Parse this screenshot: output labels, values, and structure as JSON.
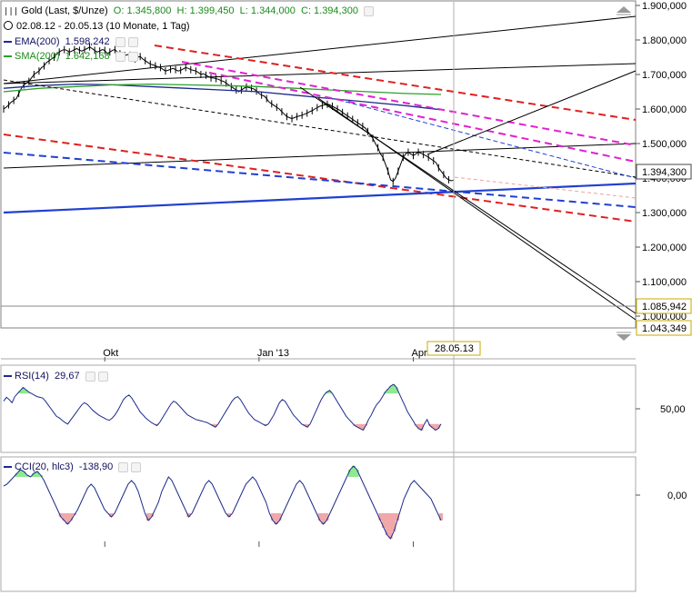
{
  "header": {
    "symbol": "Gold (Last, $/Unze)",
    "o_label": "O:",
    "o_value": "1.345,800",
    "h_label": "H:",
    "h_value": "1.399,450",
    "l_label": "L:",
    "l_value": "1.344,000",
    "c_label": "C:",
    "c_value": "1.394,300",
    "range": "02.08.12 - 20.05.13 (10 Monate, 1 Tag)",
    "ema_label": "EMA(200)",
    "ema_value": "1.598,242",
    "sma_label": "SMA(200)",
    "sma_value": "1.642,168"
  },
  "colors": {
    "ema": "#1c2a8c",
    "sma": "#2aa02a",
    "red_trend": "#e02020",
    "magenta_trend": "#e020d0",
    "blue_trend": "#2040d0",
    "price": "#000000",
    "rsi_line": "#1c2a8c",
    "overbought": "#90e890",
    "oversold": "#f0a8a8"
  },
  "chart_data": [
    {
      "type": "line",
      "title": "Gold (Last, $/Unze)",
      "ylim": [
        1000,
        1900
      ],
      "y_ticks": [
        "1.900,000",
        "1.800,000",
        "1.700,000",
        "1.600,000",
        "1.500,000",
        "1.400,000",
        "1.300,000",
        "1.200,000",
        "1.100,000",
        "1.000,000"
      ],
      "y_tick_values": [
        1900,
        1800,
        1700,
        1600,
        1500,
        1400,
        1300,
        1200,
        1100,
        1000
      ],
      "x_ticks": [
        "Okt",
        "Jan '13",
        "Apr"
      ],
      "x_tick_index": [
        40,
        101,
        162
      ],
      "cursor_label": "28.05.13",
      "cursor_index": 200,
      "value_labels": [
        {
          "text": "1.394,300",
          "value": 1394.3
        },
        {
          "text": "1.085,942",
          "value": 1085.942
        },
        {
          "text": "1.043,349",
          "value": 1043.349
        }
      ],
      "series": [
        {
          "name": "Gold",
          "values": [
            1600,
            1605,
            1612,
            1620,
            1625,
            1630,
            1645,
            1660,
            1670,
            1675,
            1680,
            1690,
            1700,
            1705,
            1710,
            1720,
            1725,
            1735,
            1740,
            1745,
            1750,
            1760,
            1765,
            1770,
            1772,
            1770,
            1765,
            1768,
            1772,
            1775,
            1770,
            1768,
            1772,
            1775,
            1780,
            1775,
            1770,
            1765,
            1768,
            1772,
            1770,
            1760,
            1765,
            1770,
            1772,
            1765,
            1760,
            1755,
            1755,
            1758,
            1756,
            1750,
            1745,
            1750,
            1752,
            1745,
            1740,
            1735,
            1730,
            1728,
            1725,
            1722,
            1720,
            1715,
            1710,
            1712,
            1715,
            1718,
            1714,
            1710,
            1712,
            1716,
            1720,
            1718,
            1714,
            1712,
            1710,
            1706,
            1700,
            1702,
            1698,
            1694,
            1690,
            1690,
            1688,
            1686,
            1682,
            1680,
            1675,
            1670,
            1665,
            1660,
            1655,
            1650,
            1655,
            1660,
            1664,
            1662,
            1660,
            1658,
            1652,
            1645,
            1640,
            1638,
            1630,
            1620,
            1615,
            1610,
            1605,
            1600,
            1592,
            1585,
            1578,
            1575,
            1572,
            1575,
            1578,
            1580,
            1582,
            1585,
            1588,
            1592,
            1595,
            1600,
            1604,
            1608,
            1610,
            1612,
            1614,
            1612,
            1608,
            1604,
            1600,
            1596,
            1590,
            1585,
            1580,
            1575,
            1570,
            1565,
            1560,
            1555,
            1550,
            1545,
            1535,
            1525,
            1515,
            1500,
            1488,
            1470,
            1460,
            1440,
            1420,
            1395,
            1390,
            1400,
            1420,
            1440,
            1460,
            1470,
            1475,
            1470,
            1465,
            1470,
            1475,
            1472,
            1468,
            1465,
            1460,
            1455,
            1450,
            1445,
            1430,
            1420,
            1410,
            1400,
            1395,
            1392,
            1394
          ]
        },
        {
          "name": "EMA(200)",
          "values": [
            1660,
            1668,
            1672,
            1670,
            1665,
            1660,
            1655,
            1650,
            1640,
            1630,
            1620,
            1610,
            1598
          ]
        },
        {
          "name": "SMA(200)",
          "values": [
            1650,
            1660,
            1665,
            1670,
            1672,
            1670,
            1668,
            1665,
            1660,
            1655,
            1650,
            1645,
            1642
          ]
        }
      ]
    },
    {
      "type": "line",
      "title": "RSI(14)",
      "series_value": "29,67",
      "ylim": [
        0,
        100
      ],
      "y_ticks": [
        "50,00"
      ],
      "y_tick_values": [
        50
      ],
      "series": [
        {
          "name": "RSI(14)",
          "values": [
            60,
            65,
            62,
            58,
            66,
            70,
            74,
            78,
            75,
            72,
            70,
            68,
            66,
            65,
            64,
            60,
            55,
            50,
            45,
            40,
            38,
            35,
            32,
            30,
            35,
            40,
            45,
            50,
            55,
            58,
            56,
            52,
            48,
            45,
            42,
            40,
            38,
            36,
            35,
            38,
            42,
            48,
            55,
            62,
            66,
            68,
            64,
            58,
            52,
            46,
            42,
            38,
            35,
            32,
            30,
            28,
            32,
            38,
            44,
            50,
            56,
            60,
            58,
            54,
            50,
            46,
            42,
            40,
            38,
            36,
            35,
            34,
            33,
            32,
            30,
            28,
            26,
            30,
            36,
            42,
            48,
            54,
            60,
            64,
            66,
            62,
            56,
            50,
            44,
            40,
            36,
            34,
            32,
            30,
            28,
            30,
            36,
            42,
            50,
            58,
            62,
            60,
            54,
            48,
            42,
            38,
            34,
            30,
            28,
            26,
            30,
            38,
            46,
            54,
            62,
            68,
            72,
            74,
            70,
            64,
            58,
            52,
            46,
            40,
            36,
            32,
            28,
            26,
            24,
            22,
            28,
            36,
            42,
            50,
            56,
            60,
            66,
            72,
            76,
            80,
            82,
            78,
            70,
            62,
            54,
            46,
            40,
            34,
            28,
            24,
            22,
            30,
            36,
            28,
            25,
            22,
            24,
            30
          ]
        }
      ]
    },
    {
      "type": "line",
      "title": "CCI(20, hlc3)",
      "series_value": "-138,90",
      "ylim": [
        -300,
        300
      ],
      "y_ticks": [
        "0,00"
      ],
      "y_tick_values": [
        0
      ],
      "series": [
        {
          "name": "CCI(20, hlc3)",
          "values": [
            50,
            60,
            80,
            100,
            120,
            140,
            130,
            110,
            100,
            120,
            130,
            110,
            80,
            40,
            0,
            -40,
            -80,
            -120,
            -140,
            -160,
            -140,
            -110,
            -80,
            -40,
            0,
            40,
            60,
            40,
            0,
            -40,
            -80,
            -100,
            -120,
            -100,
            -60,
            -20,
            20,
            60,
            80,
            60,
            20,
            -40,
            -100,
            -140,
            -120,
            -80,
            -40,
            20,
            60,
            100,
            80,
            40,
            0,
            -40,
            -80,
            -120,
            -100,
            -60,
            -20,
            20,
            60,
            80,
            60,
            20,
            -20,
            -60,
            -100,
            -120,
            -100,
            -60,
            -20,
            20,
            60,
            80,
            100,
            80,
            40,
            0,
            -40,
            -100,
            -140,
            -160,
            -140,
            -100,
            -60,
            -20,
            20,
            60,
            80,
            60,
            20,
            -20,
            -60,
            -100,
            -140,
            -160,
            -140,
            -100,
            -60,
            -20,
            20,
            60,
            100,
            140,
            160,
            140,
            100,
            60,
            20,
            -20,
            -60,
            -100,
            -140,
            -180,
            -220,
            -240,
            -200,
            -140,
            -80,
            -20,
            20,
            60,
            80,
            60,
            40,
            20,
            0,
            -20,
            -60,
            -100,
            -139
          ]
        }
      ]
    }
  ]
}
